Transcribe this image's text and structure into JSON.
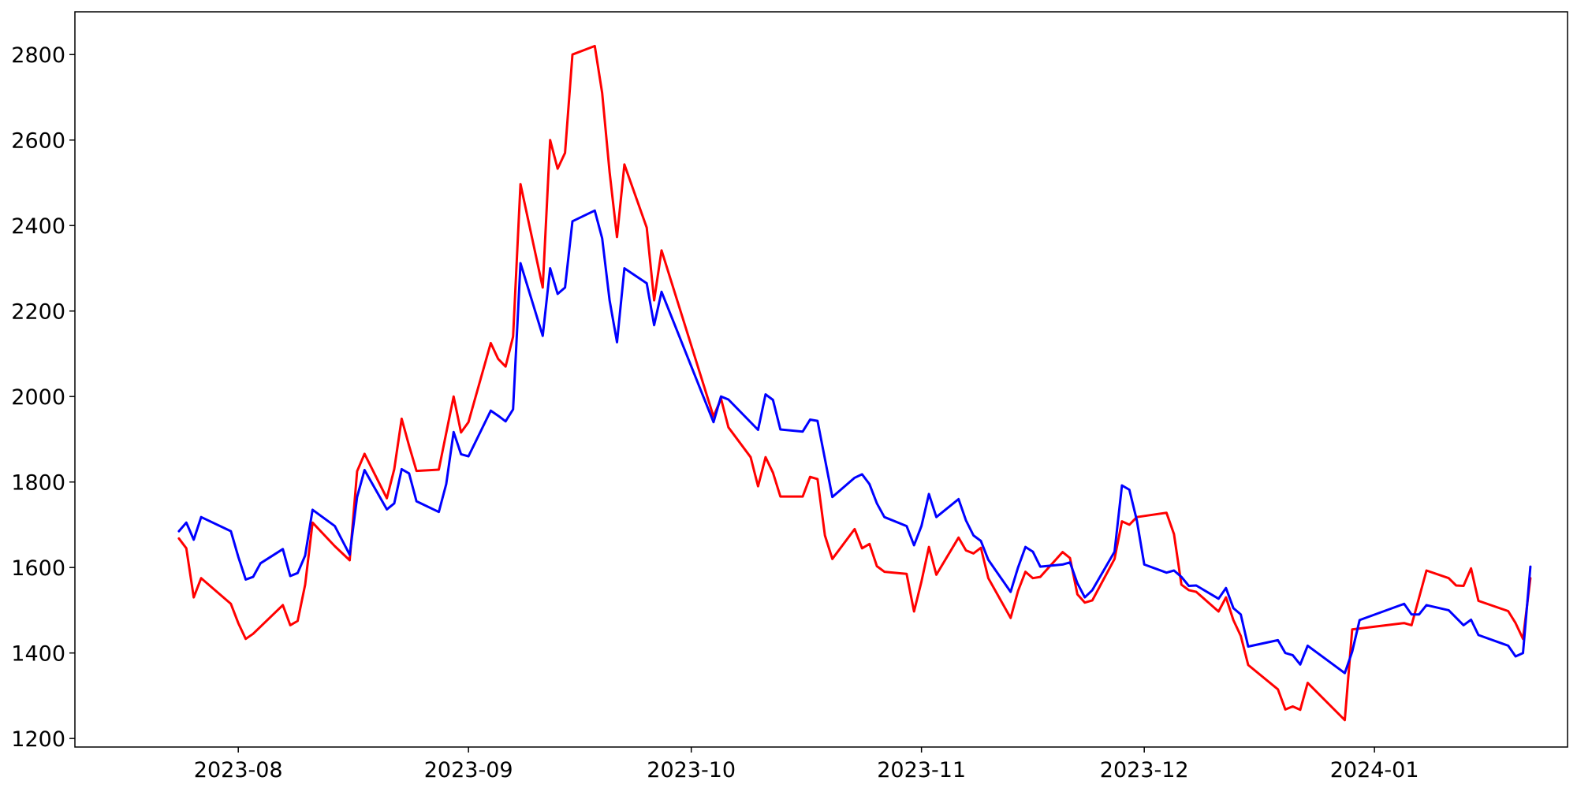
{
  "chart_data": {
    "type": "line",
    "title": "",
    "xlabel": "",
    "ylabel": "",
    "x_axis_type": "date",
    "xlim": [
      "2023-07-10",
      "2024-01-27"
    ],
    "ylim": [
      1180,
      2900
    ],
    "grid": false,
    "legend": "none",
    "x_ticks": [
      "2023-08-01",
      "2023-09-01",
      "2023-10-01",
      "2023-11-01",
      "2023-12-01",
      "2024-01-01"
    ],
    "x_tick_labels": [
      "2023-08",
      "2023-09",
      "2023-10",
      "2023-11",
      "2023-12",
      "2024-01"
    ],
    "y_ticks": [
      1200,
      1400,
      1600,
      1800,
      2000,
      2200,
      2400,
      2600,
      2800
    ],
    "y_tick_labels": [
      "1200",
      "1400",
      "1600",
      "1800",
      "2000",
      "2200",
      "2400",
      "2600",
      "2800"
    ],
    "series": [
      {
        "color": "#ff0000",
        "points": [
          [
            "2023-07-24",
            1668
          ],
          [
            "2023-07-25",
            1645
          ],
          [
            "2023-07-26",
            1530
          ],
          [
            "2023-07-27",
            1575
          ],
          [
            "2023-07-31",
            1515
          ],
          [
            "2023-08-01",
            1470
          ],
          [
            "2023-08-02",
            1433
          ],
          [
            "2023-08-03",
            1445
          ],
          [
            "2023-08-07",
            1512
          ],
          [
            "2023-08-08",
            1465
          ],
          [
            "2023-08-09",
            1475
          ],
          [
            "2023-08-10",
            1560
          ],
          [
            "2023-08-11",
            1705
          ],
          [
            "2023-08-14",
            1650
          ],
          [
            "2023-08-16",
            1617
          ],
          [
            "2023-08-17",
            1825
          ],
          [
            "2023-08-18",
            1866
          ],
          [
            "2023-08-21",
            1762
          ],
          [
            "2023-08-22",
            1830
          ],
          [
            "2023-08-23",
            1948
          ],
          [
            "2023-08-24",
            1885
          ],
          [
            "2023-08-25",
            1826
          ],
          [
            "2023-08-28",
            1829
          ],
          [
            "2023-08-30",
            2000
          ],
          [
            "2023-08-31",
            1916
          ],
          [
            "2023-09-01",
            1940
          ],
          [
            "2023-09-04",
            2125
          ],
          [
            "2023-09-05",
            2088
          ],
          [
            "2023-09-06",
            2070
          ],
          [
            "2023-09-07",
            2140
          ],
          [
            "2023-09-08",
            2497
          ],
          [
            "2023-09-11",
            2255
          ],
          [
            "2023-09-12",
            2600
          ],
          [
            "2023-09-13",
            2533
          ],
          [
            "2023-09-14",
            2570
          ],
          [
            "2023-09-15",
            2800
          ],
          [
            "2023-09-18",
            2820
          ],
          [
            "2023-09-19",
            2710
          ],
          [
            "2023-09-20",
            2525
          ],
          [
            "2023-09-21",
            2373
          ],
          [
            "2023-09-22",
            2543
          ],
          [
            "2023-09-25",
            2395
          ],
          [
            "2023-09-26",
            2225
          ],
          [
            "2023-09-27",
            2342
          ],
          [
            "2023-10-04",
            1953
          ],
          [
            "2023-10-05",
            1995
          ],
          [
            "2023-10-06",
            1928
          ],
          [
            "2023-10-09",
            1858
          ],
          [
            "2023-10-10",
            1790
          ],
          [
            "2023-10-11",
            1858
          ],
          [
            "2023-10-12",
            1822
          ],
          [
            "2023-10-13",
            1766
          ],
          [
            "2023-10-16",
            1766
          ],
          [
            "2023-10-17",
            1812
          ],
          [
            "2023-10-18",
            1807
          ],
          [
            "2023-10-19",
            1675
          ],
          [
            "2023-10-20",
            1620
          ],
          [
            "2023-10-23",
            1690
          ],
          [
            "2023-10-24",
            1645
          ],
          [
            "2023-10-25",
            1655
          ],
          [
            "2023-10-26",
            1603
          ],
          [
            "2023-10-27",
            1590
          ],
          [
            "2023-10-30",
            1585
          ],
          [
            "2023-10-31",
            1497
          ],
          [
            "2023-11-01",
            1567
          ],
          [
            "2023-11-02",
            1648
          ],
          [
            "2023-11-03",
            1583
          ],
          [
            "2023-11-06",
            1670
          ],
          [
            "2023-11-07",
            1640
          ],
          [
            "2023-11-08",
            1633
          ],
          [
            "2023-11-09",
            1646
          ],
          [
            "2023-11-10",
            1575
          ],
          [
            "2023-11-13",
            1482
          ],
          [
            "2023-11-14",
            1545
          ],
          [
            "2023-11-15",
            1590
          ],
          [
            "2023-11-16",
            1575
          ],
          [
            "2023-11-17",
            1578
          ],
          [
            "2023-11-20",
            1636
          ],
          [
            "2023-11-21",
            1622
          ],
          [
            "2023-11-22",
            1537
          ],
          [
            "2023-11-23",
            1518
          ],
          [
            "2023-11-24",
            1523
          ],
          [
            "2023-11-27",
            1620
          ],
          [
            "2023-11-28",
            1708
          ],
          [
            "2023-11-29",
            1700
          ],
          [
            "2023-11-30",
            1718
          ],
          [
            "2023-12-04",
            1728
          ],
          [
            "2023-12-05",
            1678
          ],
          [
            "2023-12-06",
            1560
          ],
          [
            "2023-12-07",
            1547
          ],
          [
            "2023-12-08",
            1543
          ],
          [
            "2023-12-11",
            1497
          ],
          [
            "2023-12-12",
            1530
          ],
          [
            "2023-12-13",
            1477
          ],
          [
            "2023-12-14",
            1440
          ],
          [
            "2023-12-15",
            1372
          ],
          [
            "2023-12-19",
            1315
          ],
          [
            "2023-12-20",
            1268
          ],
          [
            "2023-12-21",
            1275
          ],
          [
            "2023-12-22",
            1267
          ],
          [
            "2023-12-23",
            1330
          ],
          [
            "2023-12-28",
            1243
          ],
          [
            "2023-12-29",
            1455
          ],
          [
            "2024-01-05",
            1470
          ],
          [
            "2024-01-06",
            1465
          ],
          [
            "2024-01-08",
            1593
          ],
          [
            "2024-01-11",
            1575
          ],
          [
            "2024-01-12",
            1558
          ],
          [
            "2024-01-13",
            1557
          ],
          [
            "2024-01-14",
            1598
          ],
          [
            "2024-01-15",
            1522
          ],
          [
            "2024-01-19",
            1498
          ],
          [
            "2024-01-20",
            1470
          ],
          [
            "2024-01-21",
            1433
          ],
          [
            "2024-01-22",
            1575
          ]
        ]
      },
      {
        "color": "#0000ff",
        "points": [
          [
            "2023-07-24",
            1685
          ],
          [
            "2023-07-25",
            1705
          ],
          [
            "2023-07-26",
            1665
          ],
          [
            "2023-07-27",
            1718
          ],
          [
            "2023-07-31",
            1685
          ],
          [
            "2023-08-01",
            1625
          ],
          [
            "2023-08-02",
            1572
          ],
          [
            "2023-08-03",
            1578
          ],
          [
            "2023-08-04",
            1610
          ],
          [
            "2023-08-07",
            1643
          ],
          [
            "2023-08-08",
            1580
          ],
          [
            "2023-08-09",
            1587
          ],
          [
            "2023-08-10",
            1628
          ],
          [
            "2023-08-11",
            1735
          ],
          [
            "2023-08-14",
            1697
          ],
          [
            "2023-08-16",
            1630
          ],
          [
            "2023-08-17",
            1765
          ],
          [
            "2023-08-18",
            1828
          ],
          [
            "2023-08-21",
            1736
          ],
          [
            "2023-08-22",
            1750
          ],
          [
            "2023-08-23",
            1830
          ],
          [
            "2023-08-24",
            1820
          ],
          [
            "2023-08-25",
            1755
          ],
          [
            "2023-08-28",
            1730
          ],
          [
            "2023-08-29",
            1795
          ],
          [
            "2023-08-30",
            1917
          ],
          [
            "2023-08-31",
            1865
          ],
          [
            "2023-09-01",
            1860
          ],
          [
            "2023-09-04",
            1967
          ],
          [
            "2023-09-05",
            1955
          ],
          [
            "2023-09-06",
            1942
          ],
          [
            "2023-09-07",
            1970
          ],
          [
            "2023-09-08",
            2312
          ],
          [
            "2023-09-11",
            2142
          ],
          [
            "2023-09-12",
            2300
          ],
          [
            "2023-09-13",
            2240
          ],
          [
            "2023-09-14",
            2255
          ],
          [
            "2023-09-15",
            2410
          ],
          [
            "2023-09-18",
            2435
          ],
          [
            "2023-09-19",
            2370
          ],
          [
            "2023-09-20",
            2225
          ],
          [
            "2023-09-21",
            2127
          ],
          [
            "2023-09-22",
            2300
          ],
          [
            "2023-09-25",
            2265
          ],
          [
            "2023-09-26",
            2167
          ],
          [
            "2023-09-27",
            2245
          ],
          [
            "2023-10-04",
            1940
          ],
          [
            "2023-10-05",
            2000
          ],
          [
            "2023-10-06",
            1993
          ],
          [
            "2023-10-10",
            1922
          ],
          [
            "2023-10-11",
            2005
          ],
          [
            "2023-10-12",
            1992
          ],
          [
            "2023-10-13",
            1923
          ],
          [
            "2023-10-16",
            1918
          ],
          [
            "2023-10-17",
            1946
          ],
          [
            "2023-10-18",
            1943
          ],
          [
            "2023-10-20",
            1765
          ],
          [
            "2023-10-23",
            1810
          ],
          [
            "2023-10-24",
            1818
          ],
          [
            "2023-10-25",
            1795
          ],
          [
            "2023-10-26",
            1750
          ],
          [
            "2023-10-27",
            1718
          ],
          [
            "2023-10-30",
            1697
          ],
          [
            "2023-10-31",
            1652
          ],
          [
            "2023-11-01",
            1697
          ],
          [
            "2023-11-02",
            1772
          ],
          [
            "2023-11-03",
            1718
          ],
          [
            "2023-11-06",
            1760
          ],
          [
            "2023-11-07",
            1710
          ],
          [
            "2023-11-08",
            1675
          ],
          [
            "2023-11-09",
            1662
          ],
          [
            "2023-11-10",
            1618
          ],
          [
            "2023-11-13",
            1543
          ],
          [
            "2023-11-14",
            1600
          ],
          [
            "2023-11-15",
            1648
          ],
          [
            "2023-11-16",
            1637
          ],
          [
            "2023-11-17",
            1602
          ],
          [
            "2023-11-20",
            1607
          ],
          [
            "2023-11-21",
            1612
          ],
          [
            "2023-11-22",
            1563
          ],
          [
            "2023-11-23",
            1530
          ],
          [
            "2023-11-24",
            1547
          ],
          [
            "2023-11-27",
            1637
          ],
          [
            "2023-11-28",
            1792
          ],
          [
            "2023-11-29",
            1782
          ],
          [
            "2023-11-30",
            1710
          ],
          [
            "2023-12-01",
            1607
          ],
          [
            "2023-12-04",
            1588
          ],
          [
            "2023-12-05",
            1593
          ],
          [
            "2023-12-06",
            1578
          ],
          [
            "2023-12-07",
            1557
          ],
          [
            "2023-12-08",
            1558
          ],
          [
            "2023-12-11",
            1527
          ],
          [
            "2023-12-12",
            1552
          ],
          [
            "2023-12-13",
            1505
          ],
          [
            "2023-12-14",
            1490
          ],
          [
            "2023-12-15",
            1415
          ],
          [
            "2023-12-19",
            1430
          ],
          [
            "2023-12-20",
            1400
          ],
          [
            "2023-12-21",
            1395
          ],
          [
            "2023-12-22",
            1373
          ],
          [
            "2023-12-23",
            1417
          ],
          [
            "2023-12-28",
            1353
          ],
          [
            "2023-12-29",
            1403
          ],
          [
            "2023-12-30",
            1477
          ],
          [
            "2024-01-05",
            1515
          ],
          [
            "2024-01-06",
            1490
          ],
          [
            "2024-01-07",
            1490
          ],
          [
            "2024-01-08",
            1512
          ],
          [
            "2024-01-11",
            1500
          ],
          [
            "2024-01-13",
            1465
          ],
          [
            "2024-01-14",
            1478
          ],
          [
            "2024-01-15",
            1442
          ],
          [
            "2024-01-19",
            1417
          ],
          [
            "2024-01-20",
            1392
          ],
          [
            "2024-01-21",
            1400
          ],
          [
            "2024-01-22",
            1602
          ]
        ]
      }
    ]
  }
}
